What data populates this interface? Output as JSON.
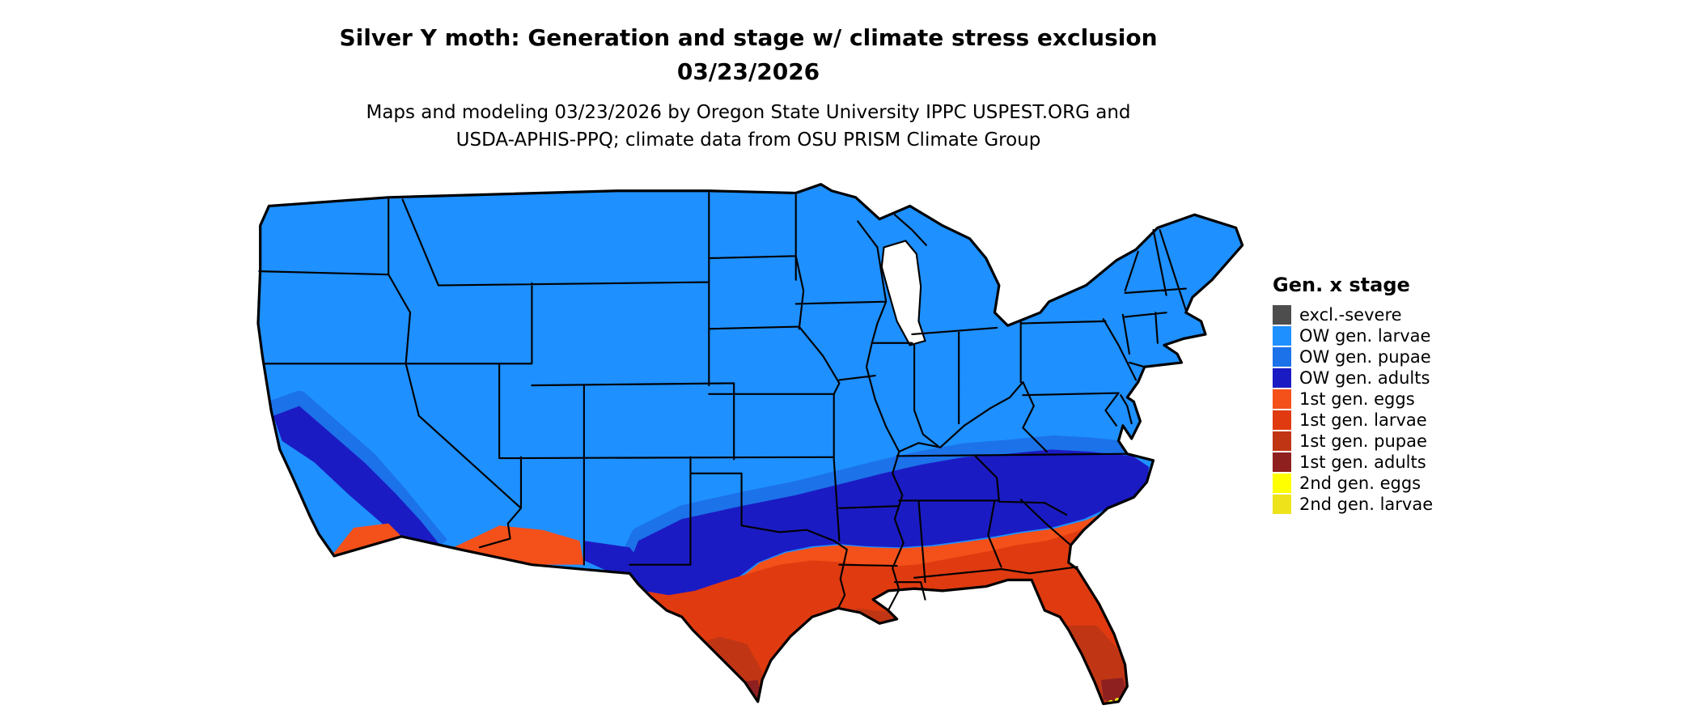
{
  "title": {
    "line1": "Silver Y moth: Generation and stage w/ climate stress exclusion",
    "line2": "03/23/2026"
  },
  "subtitle": {
    "line1": "Maps and modeling 03/23/2026 by Oregon State University IPPC USPEST.ORG and",
    "line2": "USDA-APHIS-PPQ; climate data from OSU PRISM Climate Group"
  },
  "legend": {
    "title": "Gen. x stage",
    "items": [
      {
        "label": "excl.-severe",
        "color": "#4D4D4D"
      },
      {
        "label": "OW gen. larvae",
        "color": "#1E90FF"
      },
      {
        "label": "OW gen. pupae",
        "color": "#1C72E8"
      },
      {
        "label": "OW gen. adults",
        "color": "#1B1BC4"
      },
      {
        "label": "1st gen. eggs",
        "color": "#F4501A"
      },
      {
        "label": "1st gen. larvae",
        "color": "#E03A10"
      },
      {
        "label": "1st gen. pupae",
        "color": "#C03614"
      },
      {
        "label": "1st gen. adults",
        "color": "#8F2020"
      },
      {
        "label": "2nd gen. eggs",
        "color": "#FFFF00"
      },
      {
        "label": "2nd gen. larvae",
        "color": "#EEE31A"
      }
    ]
  },
  "colors": {
    "excl_severe": "#4D4D4D",
    "ow_larvae": "#1E90FF",
    "ow_pupae": "#1C72E8",
    "ow_adults": "#1B1BC4",
    "g1_eggs": "#F4501A",
    "g1_larvae": "#E03A10",
    "g1_pupae": "#C03614",
    "g1_adults": "#8F2020",
    "g2_eggs": "#FFFF00",
    "g2_larvae": "#EEE31A",
    "border": "#000000",
    "water": "#FFFFFF"
  },
  "map": {
    "region": "Continental United States",
    "kind": "choropleth of insect phenology model output"
  }
}
